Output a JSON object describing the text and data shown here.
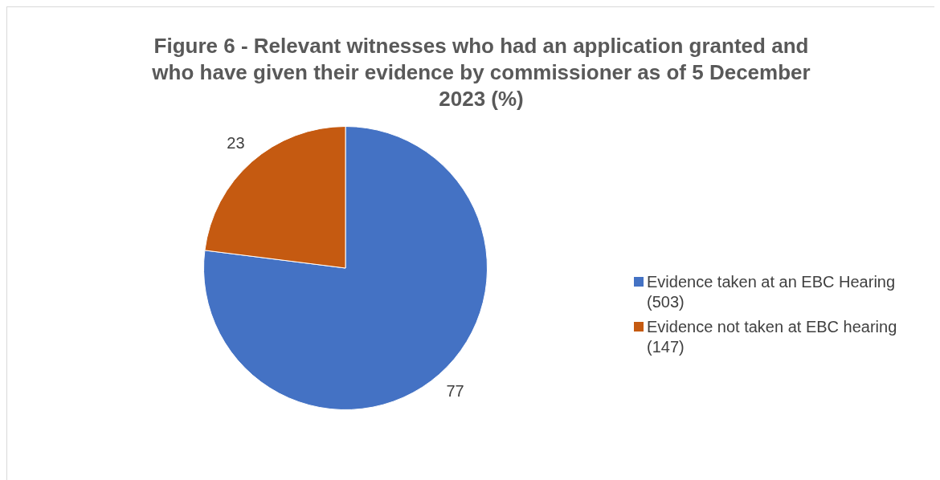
{
  "chart_data": {
    "type": "pie",
    "title": "Figure 6 - Relevant witnesses who had an application granted and who have given their evidence by commissioner as of 5 December 2023 (%)",
    "categories": [
      "Evidence taken at an EBC Hearing (503)",
      "Evidence not taken at EBC hearing (147)"
    ],
    "values": [
      77,
      23
    ],
    "colors": [
      "#4472c4",
      "#c55a11"
    ],
    "data_labels": true,
    "legend": "right"
  }
}
